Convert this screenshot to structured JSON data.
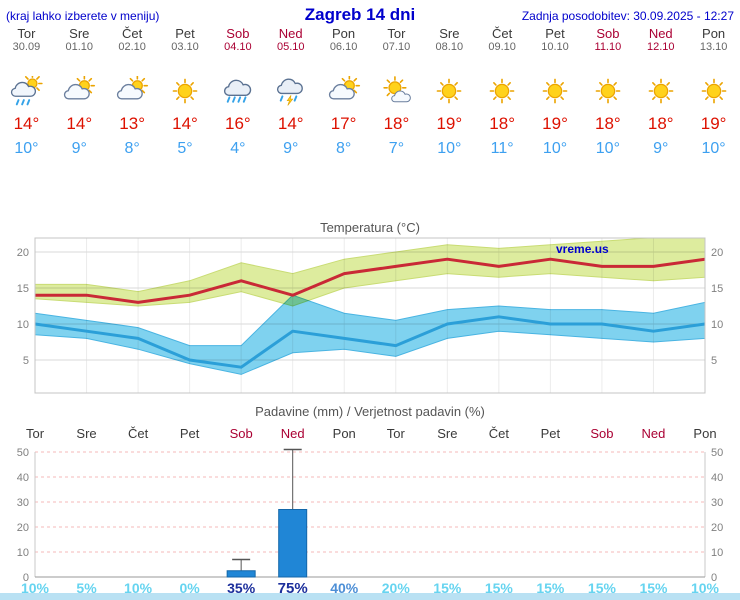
{
  "header": {
    "left_note": "(kraj lahko izberete v meniju)",
    "title": "Zagreb 14 dni",
    "updated": "Zadnja posodobitev: 30.09.2025 - 12:27"
  },
  "colors": {
    "header_blue": "#0000cc",
    "weekday": "#3a3a3a",
    "weekday_date": "#666666",
    "weekend": "#aa0033",
    "temp_max": "#dd1100",
    "temp_min": "#3da0f0",
    "line_max": "#c92936",
    "line_min": "#2b9fd8",
    "band_max": "#ddec9e",
    "band_max_edge": "#c9dc74",
    "band_min": "#7fd2ef",
    "band_min_edge": "#49b4e2",
    "bar": "#2086d6",
    "bar_edge": "#1467a9",
    "whisker": "#555555",
    "grid": "#d9d9d9",
    "grid_vertical": "#ececec",
    "grid_precip": "#f4b8b8",
    "axis_text": "#808080",
    "title_text": "#555555",
    "pct_low": "#66d4f0",
    "pct_mid": "#4d8fd6",
    "pct_high": "#1c2f9c",
    "watermark": "#0000cc",
    "footer_strip": "#b9e1f3"
  },
  "forecast": {
    "days": [
      {
        "name": "Tor",
        "date": "30.09",
        "weekend": false,
        "icon": "shower-icon",
        "max": "14°",
        "min": "10°"
      },
      {
        "name": "Sre",
        "date": "01.10",
        "weekend": false,
        "icon": "partly-cloudy-icon",
        "max": "14°",
        "min": "9°"
      },
      {
        "name": "Čet",
        "date": "02.10",
        "weekend": false,
        "icon": "partly-cloudy-icon",
        "max": "13°",
        "min": "8°"
      },
      {
        "name": "Pet",
        "date": "03.10",
        "weekend": false,
        "icon": "sunny-icon",
        "max": "14°",
        "min": "5°"
      },
      {
        "name": "Sob",
        "date": "04.10",
        "weekend": true,
        "icon": "rain-icon",
        "max": "16°",
        "min": "4°"
      },
      {
        "name": "Ned",
        "date": "05.10",
        "weekend": true,
        "icon": "thunder-rain-icon",
        "max": "14°",
        "min": "9°"
      },
      {
        "name": "Pon",
        "date": "06.10",
        "weekend": false,
        "icon": "partly-cloudy-icon",
        "max": "17°",
        "min": "8°"
      },
      {
        "name": "Tor",
        "date": "07.10",
        "weekend": false,
        "icon": "mostly-sunny-icon",
        "max": "18°",
        "min": "7°"
      },
      {
        "name": "Sre",
        "date": "08.10",
        "weekend": false,
        "icon": "sunny-icon",
        "max": "19°",
        "min": "10°"
      },
      {
        "name": "Čet",
        "date": "09.10",
        "weekend": false,
        "icon": "sunny-icon",
        "max": "18°",
        "min": "11°"
      },
      {
        "name": "Pet",
        "date": "10.10",
        "weekend": false,
        "icon": "sunny-icon",
        "max": "19°",
        "min": "10°"
      },
      {
        "name": "Sob",
        "date": "11.10",
        "weekend": true,
        "icon": "sunny-icon",
        "max": "18°",
        "min": "10°"
      },
      {
        "name": "Ned",
        "date": "12.10",
        "weekend": true,
        "icon": "sunny-icon",
        "max": "18°",
        "min": "9°"
      },
      {
        "name": "Pon",
        "date": "13.10",
        "weekend": false,
        "icon": "sunny-icon",
        "max": "19°",
        "min": "10°"
      }
    ]
  },
  "chart_data": [
    {
      "type": "line",
      "title": "Temperatura (°C)",
      "watermark": "vreme.us",
      "x_labels": [
        "30.09",
        "01.10",
        "02.10",
        "03.10",
        "04.10",
        "05.10",
        "06.10",
        "07.10",
        "08.10",
        "09.10",
        "10.10",
        "11.10",
        "12.10",
        "13.10"
      ],
      "ylim": [
        0,
        22.5
      ],
      "yticks": [
        5,
        10,
        15,
        20
      ],
      "grid": true,
      "series": [
        {
          "name": "temp-max",
          "values": [
            14,
            14,
            13,
            14,
            16,
            14,
            17,
            18,
            19,
            18,
            19,
            18,
            18,
            19
          ]
        },
        {
          "name": "temp-min",
          "values": [
            10,
            9,
            8,
            5,
            4,
            9,
            8,
            7,
            10,
            11,
            10,
            10,
            9,
            10
          ]
        },
        {
          "name": "temp-max-range-high",
          "values": [
            15.5,
            15.5,
            14.5,
            16,
            18.5,
            17,
            19,
            20,
            21,
            20.5,
            21,
            21.5,
            22,
            22.5
          ]
        },
        {
          "name": "temp-max-range-low",
          "values": [
            13.5,
            13,
            12.5,
            13,
            14.5,
            12.5,
            15,
            16,
            17,
            16.5,
            17,
            16.5,
            16,
            16.5
          ]
        },
        {
          "name": "temp-min-range-high",
          "values": [
            11.5,
            10.5,
            9.5,
            7,
            7,
            14,
            11.5,
            10.5,
            12,
            12.5,
            12,
            12,
            11.5,
            13
          ]
        },
        {
          "name": "temp-min-range-low",
          "values": [
            8.5,
            8,
            6.5,
            4.5,
            3,
            6,
            6.5,
            5.5,
            8,
            9,
            8.5,
            8,
            7.5,
            8
          ]
        }
      ]
    },
    {
      "type": "bar",
      "title": "Padavine (mm) / Verjetnost padavin (%)",
      "categories": [
        "Tor",
        "Sre",
        "Čet",
        "Pet",
        "Sob",
        "Ned",
        "Pon",
        "Tor",
        "Sre",
        "Čet",
        "Pet",
        "Sob",
        "Ned",
        "Pon"
      ],
      "weekend_flags": [
        false,
        false,
        false,
        false,
        true,
        true,
        false,
        false,
        false,
        false,
        false,
        true,
        true,
        false
      ],
      "ylim": [
        0,
        50
      ],
      "yticks": [
        0,
        10,
        20,
        30,
        40,
        50
      ],
      "precipitation_mm": [
        0,
        0,
        0,
        0,
        2.5,
        27,
        0,
        0,
        0,
        0,
        0,
        0,
        0,
        0
      ],
      "precipitation_max_mm": [
        0,
        0,
        0,
        0,
        7,
        51,
        0,
        0,
        0,
        0,
        0,
        0,
        0,
        0
      ],
      "probability_pct": [
        "10%",
        "5%",
        "10%",
        "0%",
        "35%",
        "75%",
        "40%",
        "20%",
        "15%",
        "15%",
        "15%",
        "15%",
        "15%",
        "10%"
      ],
      "probability_level": [
        "low",
        "low",
        "low",
        "low",
        "high",
        "high",
        "mid",
        "low",
        "low",
        "low",
        "low",
        "low",
        "low",
        "low"
      ]
    }
  ]
}
